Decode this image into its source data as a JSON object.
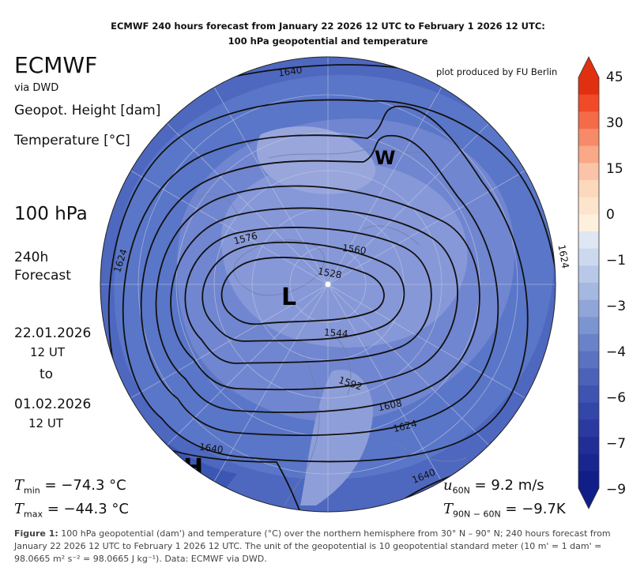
{
  "title_line1": "ECMWF 240 hours forecast from January 22 2026 12 UTC to February 1 2026 12 UTC:",
  "title_line2": "100 hPa geopotential and temperature",
  "brand": "ECMWF",
  "via": "via DWD",
  "label_geopot": "Geopot. Height [dam]",
  "label_temp": "Temperature [°C]",
  "level": "100 hPa",
  "forecast_line1": "240h",
  "forecast_line2": "Forecast",
  "date_start": "22.01.2026",
  "time_start": "12 UT",
  "to_word": "to",
  "date_end": "01.02.2026",
  "time_end": "12 UT",
  "credit": "plot produced by FU Berlin",
  "stats": {
    "tmin_label": "T",
    "tmin_sub": "min",
    "tmin_value": " = −74.3 °C",
    "tmax_label": "T",
    "tmax_sub": "max",
    "tmax_value": " = −44.3 °C",
    "u60_label": "u",
    "u60_sub": "60N",
    "u60_value": " = 9.2 m/s",
    "t90_label": "T",
    "t90_sub": "90N − 60N",
    "t90_value": " = −9.7K"
  },
  "colorbar": {
    "ticks": [
      "45",
      "30",
      "15",
      "0",
      "−1",
      "−3",
      "−4",
      "−6",
      "−7",
      "−9"
    ],
    "colors_top_to_bottom": [
      "#e03010",
      "#f04a28",
      "#f56a48",
      "#f78a68",
      "#f9a888",
      "#fbc4a8",
      "#fcd8bc",
      "#fde4cc",
      "#fdf0dc",
      "#dfe6f4",
      "#ccd8ee",
      "#b8c8e8",
      "#a4b8e0",
      "#90a6d8",
      "#7c94d0",
      "#6a82c8",
      "#5a72c0",
      "#4c62b8",
      "#3e54b0",
      "#3446a8",
      "#2a3aa0",
      "#202e98",
      "#182690",
      "#101e88"
    ]
  },
  "map_labels": {
    "contours": [
      "1640",
      "1624",
      "1624",
      "1576",
      "1560",
      "1528",
      "1544",
      "1592",
      "1608",
      "1624",
      "1640",
      "1640"
    ],
    "low": "L",
    "warm": "W",
    "high_partial": "H"
  },
  "caption": {
    "lead": "Figure 1:",
    "text": " 100 hPa geopotential (dam') and temperature (°C) over the northern hemisphere from 30° N – 90° N; 240 hours forecast from January 22 2026 12 UTC to February 1 2026 12 UTC. The unit of the geopotential is 10 geopotential standard meter (10 m' = 1 dam' = 98.0665 m² s⁻² = 98.0665 J kg⁻¹). Data: ECMWF via DWD."
  }
}
